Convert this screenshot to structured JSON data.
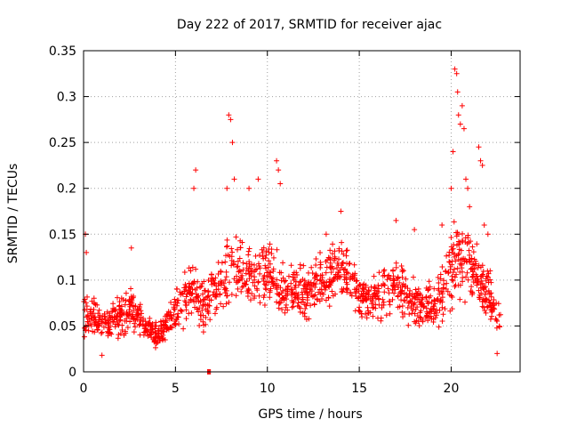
{
  "chart_data": {
    "type": "scatter",
    "title": "Day 222 of 2017, SRMTID for receiver ajac",
    "xlabel": "GPS time / hours",
    "ylabel": "SRMTID / TECUs",
    "xlim": [
      0,
      23.75
    ],
    "ylim": [
      0,
      0.35
    ],
    "x_ticks": [
      "0",
      "5",
      "10",
      "15",
      "20"
    ],
    "x_tick_values": [
      0,
      5,
      10,
      15,
      20
    ],
    "y_ticks": [
      "0",
      "0.05",
      "0.1",
      "0.15",
      "0.2",
      "0.25",
      "0.3",
      "0.35"
    ],
    "y_tick_values": [
      0,
      0.05,
      0.1,
      0.15,
      0.2,
      0.25,
      0.3,
      0.35
    ],
    "grid": true,
    "marker": "plus",
    "series_color": "#ff0000",
    "envelope": {
      "x": [
        0,
        0.5,
        1,
        1.5,
        2,
        2.5,
        3,
        3.5,
        4,
        4.5,
        5,
        5.5,
        6,
        6.5,
        7,
        7.5,
        8,
        8.5,
        9,
        9.5,
        10,
        10.5,
        11,
        11.5,
        12,
        12.5,
        13,
        13.5,
        14,
        14.5,
        15,
        15.5,
        16,
        16.5,
        17,
        17.5,
        18,
        18.5,
        19,
        19.5,
        20,
        20.5,
        21,
        21.5,
        22,
        22.5,
        22.7
      ],
      "base": [
        0.06,
        0.065,
        0.05,
        0.055,
        0.06,
        0.07,
        0.06,
        0.045,
        0.04,
        0.05,
        0.065,
        0.08,
        0.085,
        0.07,
        0.09,
        0.095,
        0.105,
        0.11,
        0.105,
        0.1,
        0.11,
        0.095,
        0.085,
        0.09,
        0.085,
        0.095,
        0.1,
        0.105,
        0.11,
        0.1,
        0.085,
        0.08,
        0.08,
        0.09,
        0.095,
        0.085,
        0.075,
        0.07,
        0.075,
        0.09,
        0.11,
        0.13,
        0.12,
        0.1,
        0.08,
        0.065,
        0.055
      ],
      "spread": [
        0.04,
        0.03,
        0.025,
        0.03,
        0.03,
        0.035,
        0.025,
        0.02,
        0.02,
        0.025,
        0.03,
        0.04,
        0.04,
        0.04,
        0.04,
        0.05,
        0.06,
        0.05,
        0.05,
        0.04,
        0.05,
        0.045,
        0.035,
        0.035,
        0.035,
        0.04,
        0.04,
        0.045,
        0.04,
        0.04,
        0.035,
        0.035,
        0.035,
        0.04,
        0.04,
        0.04,
        0.035,
        0.03,
        0.035,
        0.045,
        0.06,
        0.07,
        0.06,
        0.05,
        0.045,
        0.03,
        0.025
      ]
    },
    "n_points": 1500,
    "outliers": {
      "x": [
        0.1,
        0.15,
        1.0,
        2.6,
        6.0,
        6.1,
        7.8,
        7.9,
        8.0,
        8.1,
        8.2,
        9.0,
        9.5,
        10.5,
        10.6,
        10.7,
        13.2,
        14.0,
        17.0,
        18.0,
        19.5,
        20.0,
        20.1,
        20.2,
        20.3,
        20.35,
        20.4,
        20.5,
        20.6,
        20.7,
        20.8,
        20.9,
        21.0,
        21.5,
        21.6,
        21.7,
        21.8,
        22.0,
        22.5
      ],
      "y": [
        0.15,
        0.13,
        0.018,
        0.135,
        0.2,
        0.22,
        0.2,
        0.28,
        0.275,
        0.25,
        0.21,
        0.2,
        0.21,
        0.23,
        0.22,
        0.205,
        0.15,
        0.175,
        0.165,
        0.155,
        0.16,
        0.2,
        0.24,
        0.33,
        0.325,
        0.305,
        0.28,
        0.27,
        0.29,
        0.265,
        0.21,
        0.2,
        0.18,
        0.245,
        0.23,
        0.225,
        0.16,
        0.15,
        0.02
      ]
    },
    "zero_points": {
      "x": [
        6.75,
        6.8,
        6.85,
        6.9
      ],
      "y": [
        0,
        0,
        0,
        0
      ]
    }
  }
}
